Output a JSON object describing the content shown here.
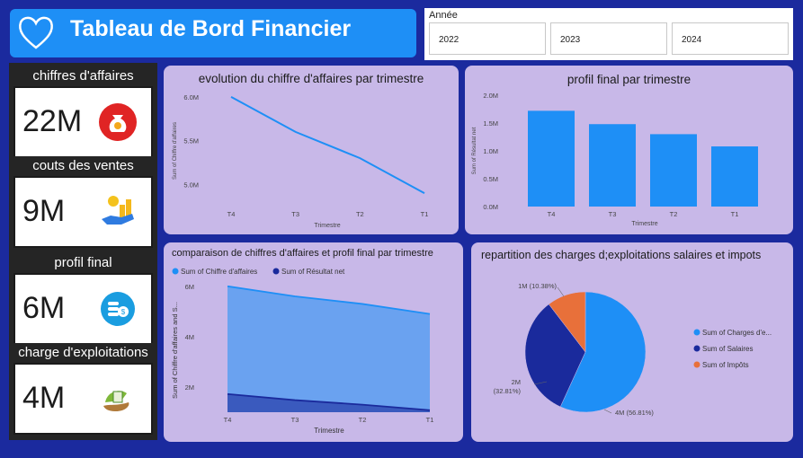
{
  "header": {
    "title": "Tableau de Bord Financier"
  },
  "slicer": {
    "label": "Année",
    "years": [
      "2022",
      "2023",
      "2024"
    ]
  },
  "kpis": [
    {
      "title": "chiffres d'affaires",
      "value": "22M",
      "icon": "money-bag-icon"
    },
    {
      "title": "couts des ventes",
      "value": "9M",
      "icon": "hand-coins-icon"
    },
    {
      "title": "profil final",
      "value": "6M",
      "icon": "coin-stack-icon"
    },
    {
      "title": "charge d'exploitations",
      "value": "4M",
      "icon": "hand-dollar-icon"
    }
  ],
  "colors": {
    "background": "#1b2a9e",
    "card": "#c8b8e8",
    "accent": "#1e8ff6",
    "dark_blue": "#1a2a9c",
    "orange": "#e8703a"
  },
  "chart_data": [
    {
      "type": "line",
      "title": "evolution du chiffre d'affaires par trimestre",
      "xlabel": "Trimestre",
      "ylabel": "Sum of Chiffre d'affaires",
      "categories": [
        "T4",
        "T3",
        "T2",
        "T1"
      ],
      "values": [
        6.0,
        5.6,
        5.3,
        4.9
      ],
      "ylim": [
        4.85,
        6.05
      ],
      "yticks": [
        "6.0M",
        "5.5M",
        "5.0M"
      ],
      "ytick_values": [
        6.0,
        5.5,
        5.0
      ]
    },
    {
      "type": "bar",
      "title": "profil final par trimestre",
      "xlabel": "Trimestre",
      "ylabel": "Sum of Résultat net",
      "categories": [
        "T4",
        "T3",
        "T2",
        "T1"
      ],
      "values": [
        1.72,
        1.48,
        1.3,
        1.08
      ],
      "ylim": [
        0,
        2.0
      ],
      "yticks": [
        "2.0M",
        "1.5M",
        "1.0M",
        "0.5M",
        "0.0M"
      ],
      "ytick_values": [
        2.0,
        1.5,
        1.0,
        0.5,
        0.0
      ]
    },
    {
      "type": "area",
      "title": "comparaison de chiffres d'affaires et profil final par trimestre",
      "xlabel": "Trimestre",
      "ylabel": "Sum of Chiffre d'affaires and S...",
      "categories": [
        "T4",
        "T3",
        "T2",
        "T1"
      ],
      "series": [
        {
          "name": "Sum of Chiffre d'affaires",
          "values": [
            6.0,
            5.6,
            5.3,
            4.9
          ]
        },
        {
          "name": "Sum of Résultat net",
          "values": [
            1.72,
            1.48,
            1.3,
            1.08
          ]
        }
      ],
      "ylim": [
        1,
        6.1
      ],
      "yticks": [
        "6M",
        "4M",
        "2M"
      ],
      "ytick_values": [
        6,
        4,
        2
      ],
      "legend": "top-left"
    },
    {
      "type": "pie",
      "title": "repartition des charges d;exploitations salaires et impots",
      "labels": [
        "Sum of Charges d'e...",
        "Sum of Salaires",
        "Sum of Impôts"
      ],
      "values": [
        56.81,
        32.81,
        10.38
      ],
      "data_labels": [
        "4M (56.81%)",
        "2M (32.81%)",
        "1M (10.38%)"
      ],
      "legend": "right"
    }
  ]
}
